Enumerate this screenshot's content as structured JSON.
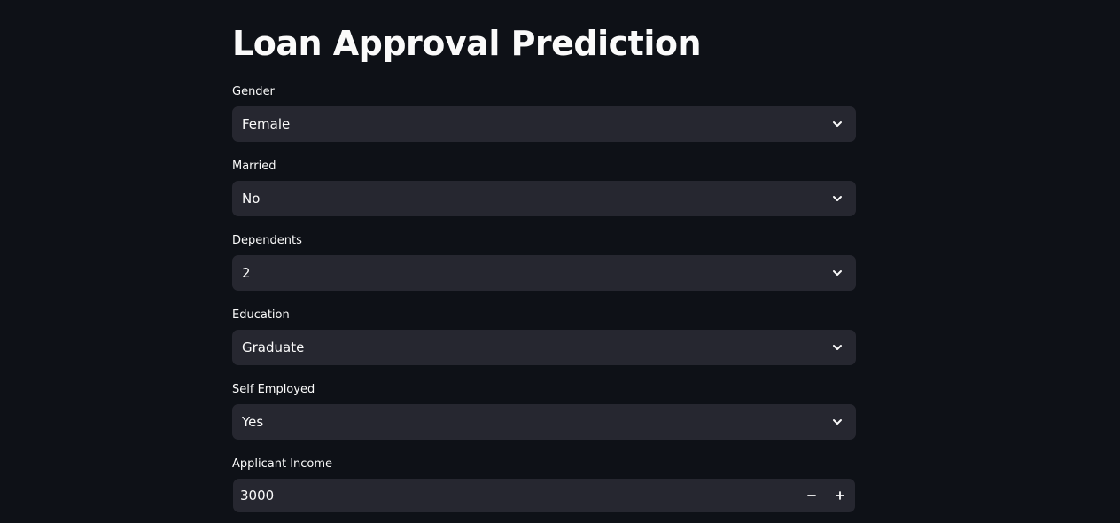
{
  "page": {
    "title": "Loan Approval Prediction"
  },
  "form": {
    "gender": {
      "label": "Gender",
      "value": "Female"
    },
    "married": {
      "label": "Married",
      "value": "No"
    },
    "dependents": {
      "label": "Dependents",
      "value": "2"
    },
    "education": {
      "label": "Education",
      "value": "Graduate"
    },
    "self_employed": {
      "label": "Self Employed",
      "value": "Yes"
    },
    "applicant_income": {
      "label": "Applicant Income",
      "value": "3000"
    }
  },
  "icons": {
    "select_chevron": "chevron-down-icon",
    "decrement": "minus-icon",
    "increment": "plus-icon"
  },
  "colors": {
    "background": "#0e1117",
    "input_background": "#262730",
    "text": "#fafafa"
  }
}
